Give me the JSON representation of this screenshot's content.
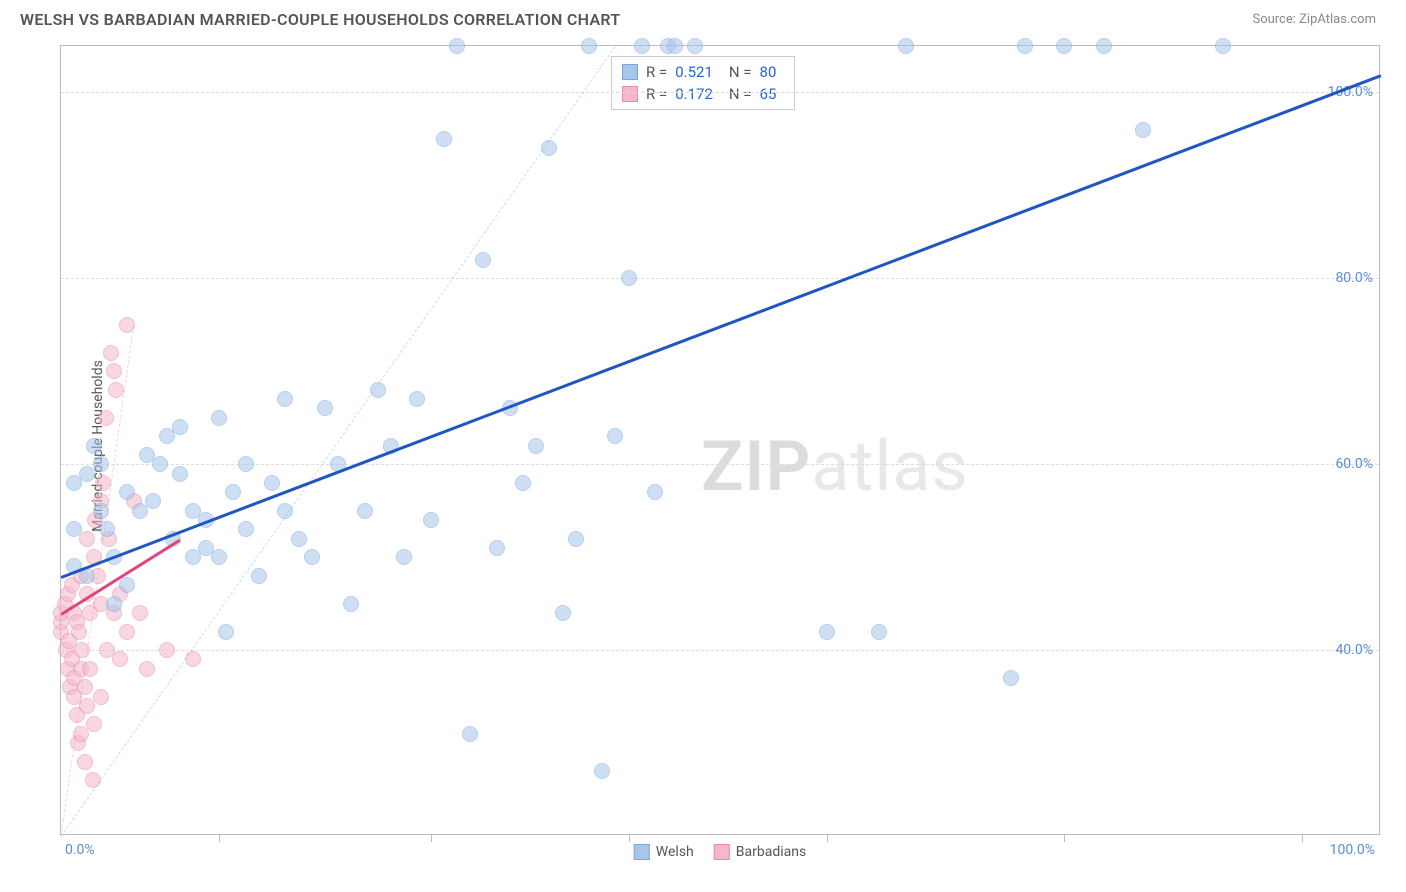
{
  "header": {
    "title": "WELSH VS BARBADIAN MARRIED-COUPLE HOUSEHOLDS CORRELATION CHART",
    "source": "Source: ZipAtlas.com"
  },
  "ylabel": "Married-couple Households",
  "watermark": {
    "zip": "ZIP",
    "atlas": "atlas"
  },
  "axes": {
    "xlim": [
      0,
      100
    ],
    "ylim": [
      20,
      105
    ],
    "x_tick_left": "0.0%",
    "x_tick_right": "100.0%",
    "y_ticks": [
      {
        "v": 40,
        "label": "40.0%"
      },
      {
        "v": 60,
        "label": "60.0%"
      },
      {
        "v": 80,
        "label": "80.0%"
      },
      {
        "v": 100,
        "label": "100.0%"
      }
    ],
    "x_tick_positions": [
      12,
      28,
      43,
      58,
      76,
      94
    ],
    "grid_color": "#dddddd"
  },
  "stats": {
    "series1": {
      "label_r": "R =",
      "r": "0.521",
      "label_n": "N =",
      "n": "80"
    },
    "series2": {
      "label_r": "R =",
      "r": "0.172",
      "label_n": "N =",
      "n": "65"
    }
  },
  "legend": {
    "series1": "Welsh",
    "series2": "Barbadians"
  },
  "series": {
    "welsh": {
      "color": "#7aa8de",
      "fill": "#a8c6ea",
      "line_color": "#1e56c4",
      "trend": {
        "x1": 0,
        "y1": 48,
        "x2": 100,
        "y2": 102
      },
      "dashed": {
        "x1": 0,
        "y1": 20,
        "x2": 42,
        "y2": 105
      },
      "points": [
        [
          1,
          49
        ],
        [
          1,
          53
        ],
        [
          1,
          58
        ],
        [
          2,
          48
        ],
        [
          2,
          59
        ],
        [
          2.5,
          62
        ],
        [
          3,
          55
        ],
        [
          3,
          60
        ],
        [
          3.5,
          53
        ],
        [
          4,
          45
        ],
        [
          4,
          50
        ],
        [
          5,
          47
        ],
        [
          5,
          57
        ],
        [
          6,
          55
        ],
        [
          6.5,
          61
        ],
        [
          7,
          56
        ],
        [
          7.5,
          60
        ],
        [
          8,
          63
        ],
        [
          8.5,
          52
        ],
        [
          9,
          64
        ],
        [
          9,
          59
        ],
        [
          10,
          50
        ],
        [
          10,
          55
        ],
        [
          11,
          54
        ],
        [
          11,
          51
        ],
        [
          12,
          50
        ],
        [
          12,
          65
        ],
        [
          12.5,
          42
        ],
        [
          13,
          57
        ],
        [
          14,
          53
        ],
        [
          14,
          60
        ],
        [
          15,
          48
        ],
        [
          16,
          58
        ],
        [
          17,
          67
        ],
        [
          17,
          55
        ],
        [
          18,
          52
        ],
        [
          19,
          50
        ],
        [
          20,
          66
        ],
        [
          21,
          60
        ],
        [
          22,
          45
        ],
        [
          23,
          55
        ],
        [
          24,
          68
        ],
        [
          25,
          62
        ],
        [
          26,
          50
        ],
        [
          27,
          67
        ],
        [
          28,
          54
        ],
        [
          29,
          95
        ],
        [
          30,
          105
        ],
        [
          31,
          31
        ],
        [
          32,
          82
        ],
        [
          33,
          51
        ],
        [
          34,
          66
        ],
        [
          35,
          58
        ],
        [
          36,
          62
        ],
        [
          37,
          94
        ],
        [
          38,
          44
        ],
        [
          39,
          52
        ],
        [
          40,
          105
        ],
        [
          41,
          27
        ],
        [
          42,
          63
        ],
        [
          43,
          80
        ],
        [
          44,
          105
        ],
        [
          45,
          57
        ],
        [
          46,
          105
        ],
        [
          46.5,
          105
        ],
        [
          48,
          105
        ],
        [
          58,
          42
        ],
        [
          62,
          42
        ],
        [
          64,
          105
        ],
        [
          72,
          37
        ],
        [
          73,
          105
        ],
        [
          76,
          105
        ],
        [
          79,
          105
        ],
        [
          82,
          96
        ],
        [
          88,
          105
        ]
      ]
    },
    "barbadians": {
      "color": "#e88ba8",
      "fill": "#f5b7c9",
      "line_color": "#e0457a",
      "trend": {
        "x1": 0,
        "y1": 44,
        "x2": 9,
        "y2": 52
      },
      "dashed": {
        "x1": 0,
        "y1": 20,
        "x2": 5.5,
        "y2": 75
      },
      "points": [
        [
          0,
          42
        ],
        [
          0,
          43
        ],
        [
          0,
          44
        ],
        [
          0.3,
          45
        ],
        [
          0.4,
          40
        ],
        [
          0.5,
          38
        ],
        [
          0.5,
          46
        ],
        [
          0.6,
          41
        ],
        [
          0.7,
          36
        ],
        [
          0.8,
          39
        ],
        [
          0.8,
          47
        ],
        [
          1,
          35
        ],
        [
          1,
          37
        ],
        [
          1,
          44
        ],
        [
          1.2,
          33
        ],
        [
          1.2,
          43
        ],
        [
          1.3,
          30
        ],
        [
          1.4,
          42
        ],
        [
          1.5,
          31
        ],
        [
          1.5,
          38
        ],
        [
          1.5,
          48
        ],
        [
          1.6,
          40
        ],
        [
          1.8,
          36
        ],
        [
          1.8,
          28
        ],
        [
          2,
          34
        ],
        [
          2,
          46
        ],
        [
          2,
          52
        ],
        [
          2.2,
          38
        ],
        [
          2.2,
          44
        ],
        [
          2.4,
          26
        ],
        [
          2.5,
          32
        ],
        [
          2.5,
          50
        ],
        [
          2.6,
          54
        ],
        [
          2.8,
          48
        ],
        [
          3,
          35
        ],
        [
          3,
          45
        ],
        [
          3,
          56
        ],
        [
          3.2,
          58
        ],
        [
          3.4,
          65
        ],
        [
          3.5,
          40
        ],
        [
          3.6,
          52
        ],
        [
          3.8,
          72
        ],
        [
          4,
          70
        ],
        [
          4,
          44
        ],
        [
          4.2,
          68
        ],
        [
          4.5,
          46
        ],
        [
          4.5,
          39
        ],
        [
          5,
          42
        ],
        [
          5,
          75
        ],
        [
          5.5,
          56
        ],
        [
          6,
          44
        ],
        [
          6.5,
          38
        ],
        [
          8,
          40
        ],
        [
          10,
          39
        ]
      ]
    }
  }
}
